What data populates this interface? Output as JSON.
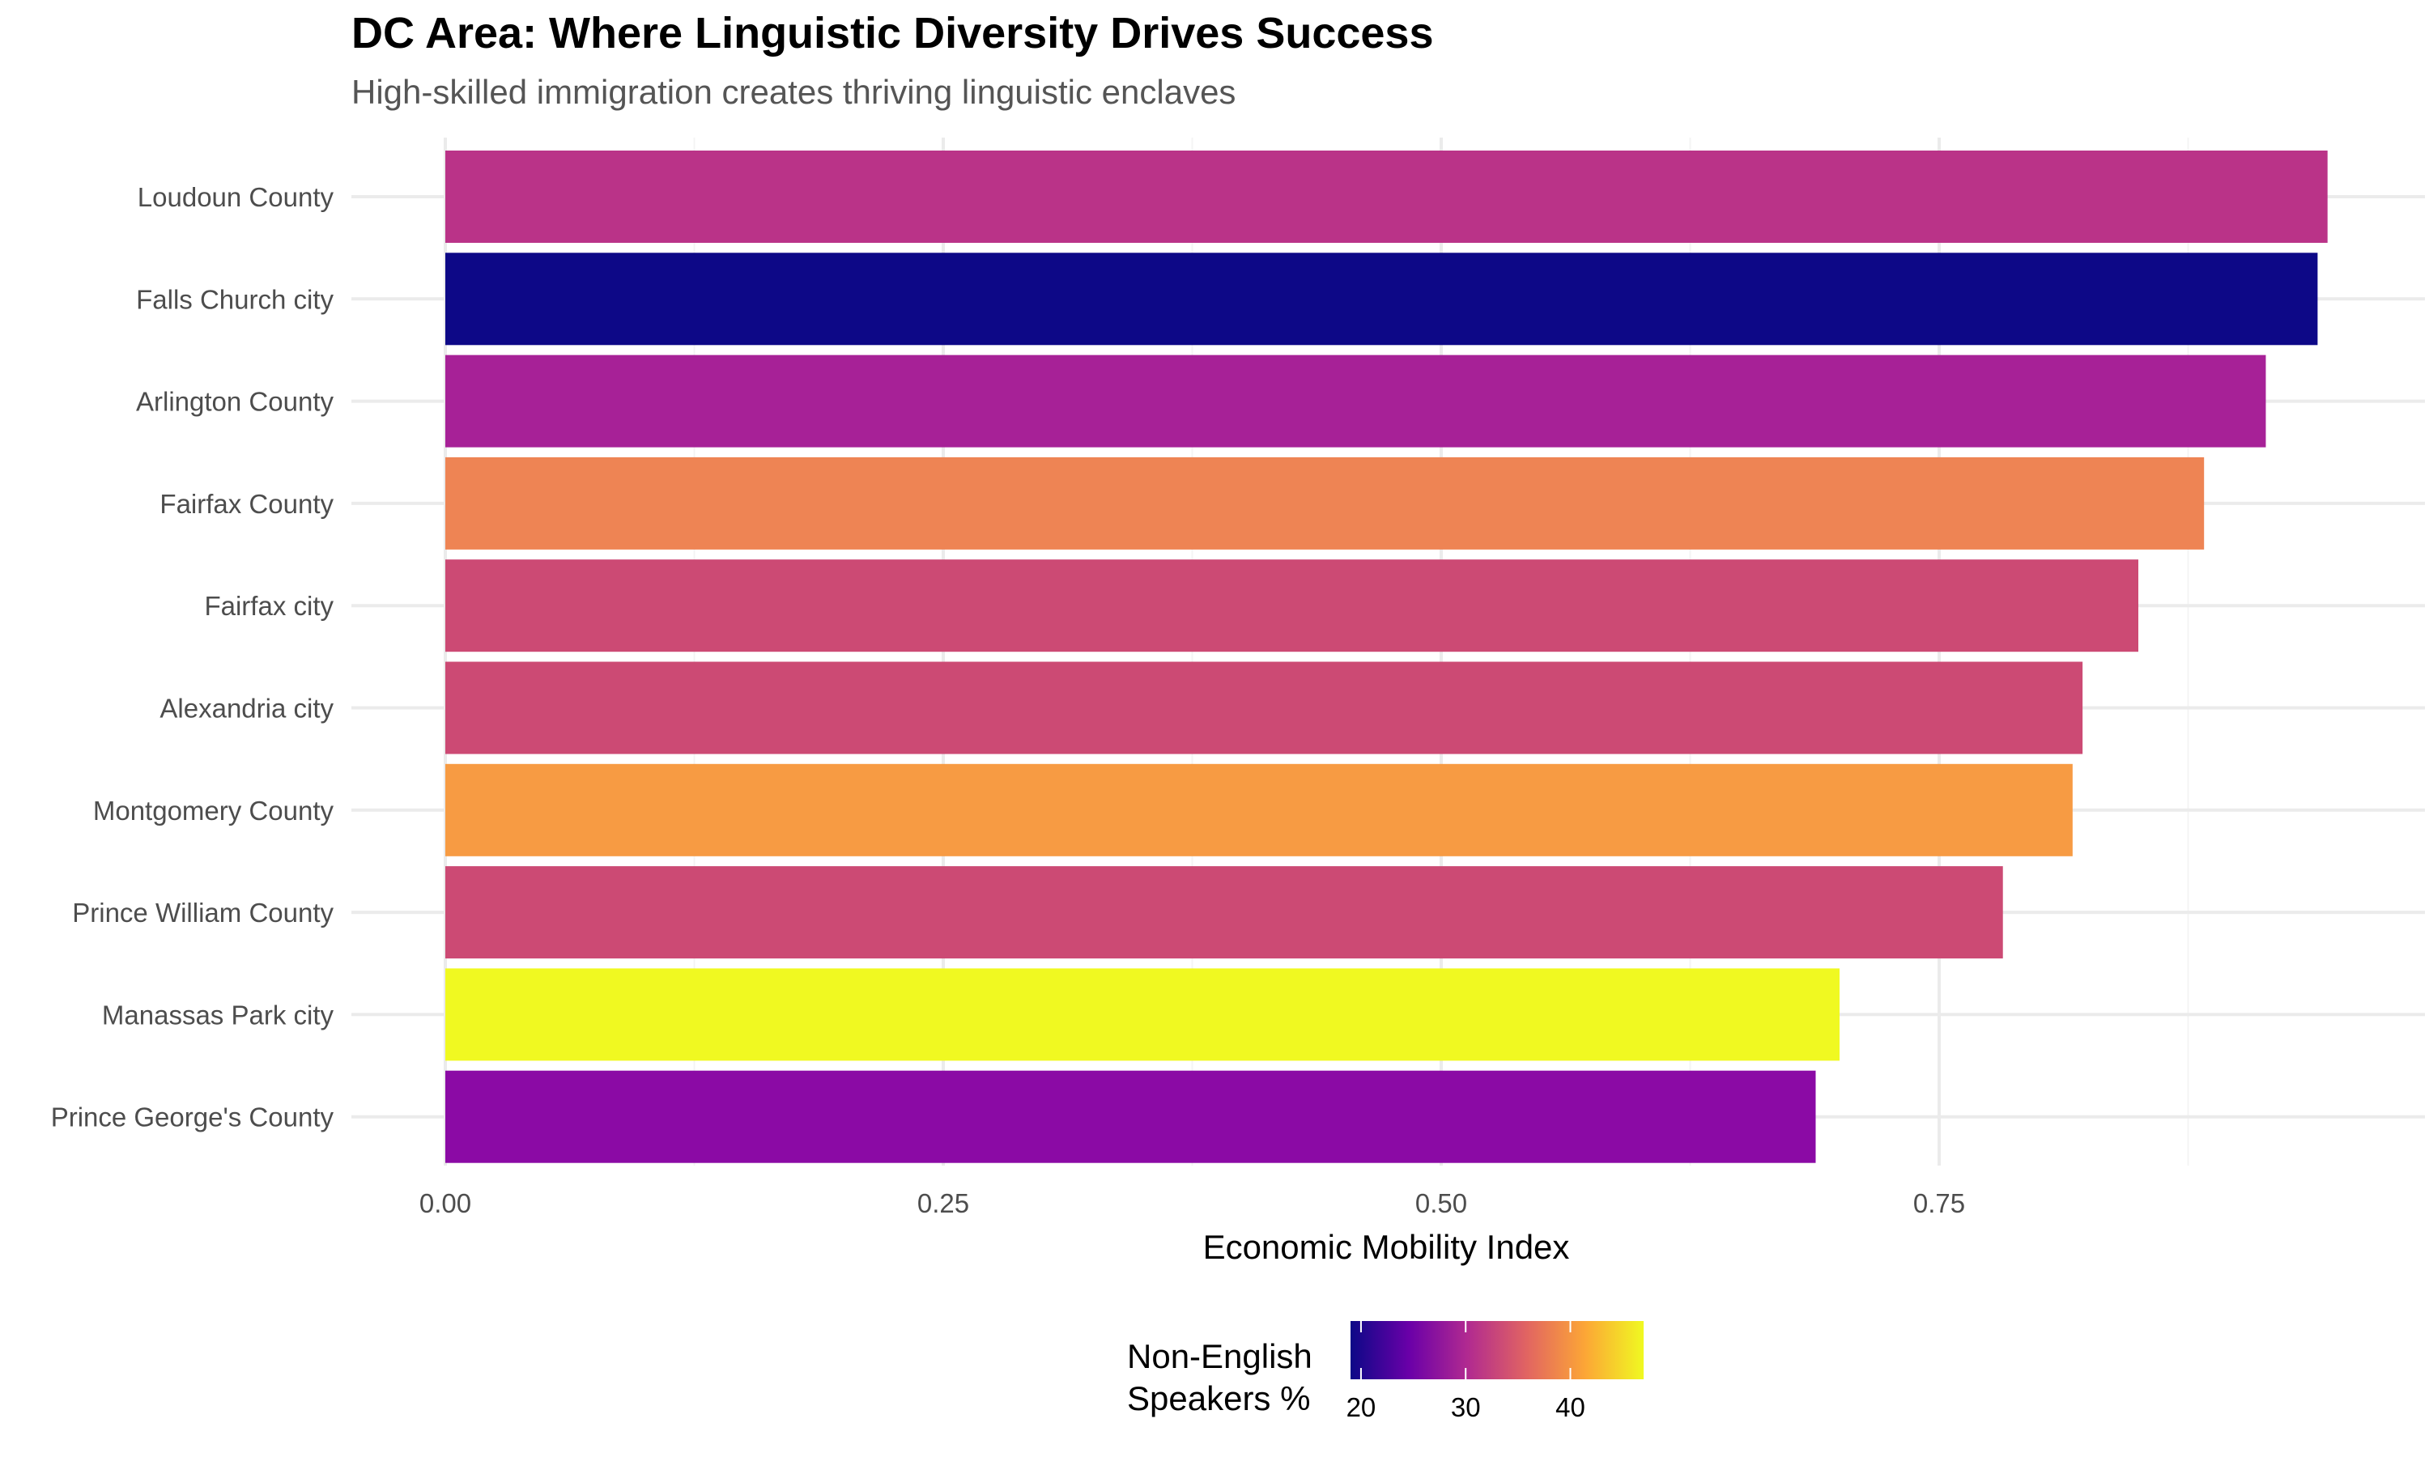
{
  "chart_data": {
    "type": "bar",
    "orientation": "horizontal",
    "title": "DC Area: Where Linguistic Diversity Drives Success",
    "subtitle": "High-skilled immigration creates thriving linguistic enclaves",
    "xlabel": "Economic Mobility Index",
    "ylabel": "",
    "xlim": [
      0,
      0.995
    ],
    "xticks": [
      0.0,
      0.25,
      0.5,
      0.75
    ],
    "xtick_labels": [
      "0.00",
      "0.25",
      "0.50",
      "0.75"
    ],
    "grid": true,
    "categories": [
      "Loudoun County",
      "Falls Church city",
      "Arlington County",
      "Fairfax County",
      "Fairfax city",
      "Alexandria city",
      "Montgomery County",
      "Prince William County",
      "Manassas Park city",
      "Prince George's County"
    ],
    "values": [
      0.945,
      0.94,
      0.914,
      0.883,
      0.85,
      0.822,
      0.817,
      0.782,
      0.7,
      0.688
    ],
    "fill_values": [
      32,
      19,
      28,
      40,
      34,
      34,
      42,
      34,
      47,
      25
    ],
    "colors": [
      "#ba3388",
      "#0d0887",
      "#a72197",
      "#ee8454",
      "#cc4a74",
      "#cc4a74",
      "#f79b43",
      "#cc4a74",
      "#f0f921",
      "#8b0aa5"
    ],
    "legend": {
      "title_lines": [
        "Non-English",
        "Speakers %"
      ],
      "type": "colorbar",
      "placement": "bottom",
      "range": [
        19,
        47
      ],
      "ticks": [
        20,
        30,
        40
      ],
      "tick_labels": [
        "20",
        "30",
        "40"
      ],
      "gradient_stops": [
        "#0d0887",
        "#6a00a8",
        "#b12a90",
        "#e16462",
        "#fca636",
        "#f0f921"
      ]
    }
  }
}
